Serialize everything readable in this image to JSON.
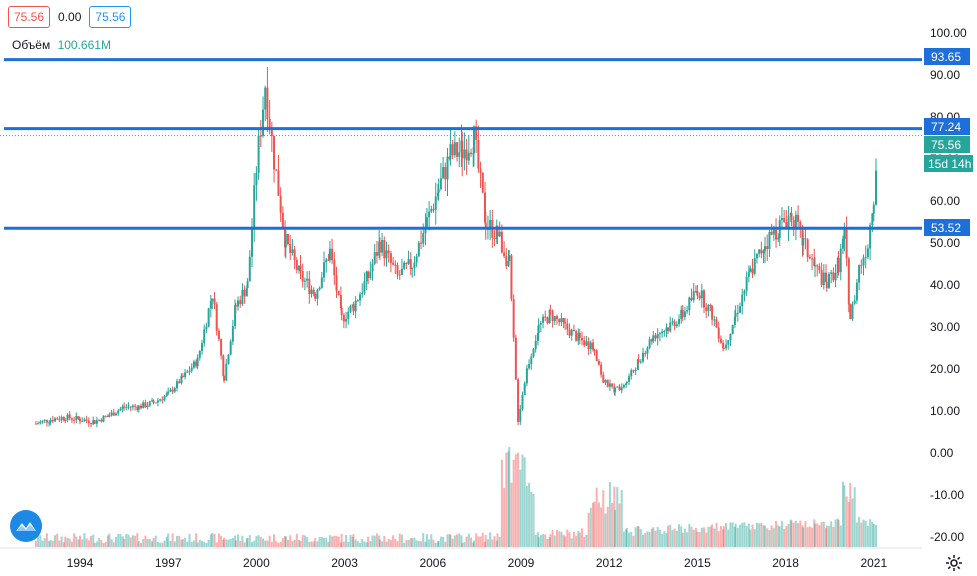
{
  "header": {
    "price_open": "75.56",
    "change": "0.00",
    "price_close": "75.56",
    "volume_label": "Объём",
    "volume_value": "100.661M"
  },
  "price_labels": {
    "level_high": "93.65",
    "level_mid": "77.24",
    "current": "75.56",
    "countdown": "15d 14h",
    "level_low": "53.52"
  },
  "colors": {
    "up": "#26a69a",
    "down": "#ef5350",
    "hline": "#1e6fd9",
    "current": "#26a69a",
    "axis_text": "#131722"
  },
  "chart_data": {
    "type": "line",
    "style": "candlestick",
    "x_axis": {
      "tick_labels": [
        "1994",
        "1997",
        "2000",
        "2003",
        "2006",
        "2009",
        "2012",
        "2015",
        "2018",
        "2021"
      ],
      "range": [
        1992.5,
        2021.3
      ]
    },
    "y_axis": {
      "position": "right",
      "tick_labels": [
        "100.00",
        "90.00",
        "80.00",
        "70.00",
        "60.00",
        "50.00",
        "40.00",
        "30.00",
        "20.00",
        "10.00",
        "0.00",
        "-10.00",
        "-20.00"
      ],
      "ylim": [
        -20,
        100
      ]
    },
    "horizontal_levels": [
      93.65,
      77.24,
      53.52
    ],
    "current_price": 75.56,
    "series": [
      {
        "type": "candlestick",
        "x": [
          1992.5,
          1993.0,
          1993.5,
          1994.0,
          1994.5,
          1995.0,
          1995.5,
          1996.0,
          1996.5,
          1997.0,
          1997.5,
          1998.0,
          1998.5,
          1998.9,
          1999.3,
          1999.7,
          2000.0,
          2000.3,
          2000.6,
          2001.0,
          2001.5,
          2002.0,
          2002.5,
          2002.9,
          2003.3,
          2003.8,
          2004.2,
          2004.8,
          2005.3,
          2005.8,
          2006.2,
          2006.6,
          2007.0,
          2007.4,
          2007.8,
          2008.2,
          2008.6,
          2008.9,
          2009.2,
          2009.6,
          2010.0,
          2010.5,
          2011.0,
          2011.5,
          2011.8,
          2012.2,
          2012.6,
          2013.0,
          2013.5,
          2014.0,
          2014.5,
          2015.0,
          2015.5,
          2015.9,
          2016.3,
          2016.8,
          2017.3,
          2017.8,
          2018.2,
          2018.6,
          2019.0,
          2019.4,
          2019.8,
          2020.0,
          2020.2,
          2020.5,
          2020.8,
          2021.0,
          2021.15
        ],
        "y": [
          7,
          8,
          8.5,
          8,
          7.5,
          9,
          11,
          11,
          12,
          14,
          18,
          22,
          38,
          18,
          35,
          40,
          68,
          88,
          70,
          50,
          42,
          38,
          48,
          32,
          35,
          42,
          50,
          42,
          45,
          55,
          63,
          71,
          72,
          75,
          55,
          52,
          45,
          8,
          20,
          30,
          33,
          30,
          27,
          25,
          17,
          15,
          17,
          22,
          28,
          30,
          33,
          39,
          33,
          25,
          33,
          43,
          50,
          54,
          57,
          50,
          44,
          40,
          45,
          52,
          32,
          44,
          50,
          62,
          75.56
        ]
      }
    ],
    "volume": {
      "label": "Объём",
      "last_value": "100.661M"
    }
  }
}
